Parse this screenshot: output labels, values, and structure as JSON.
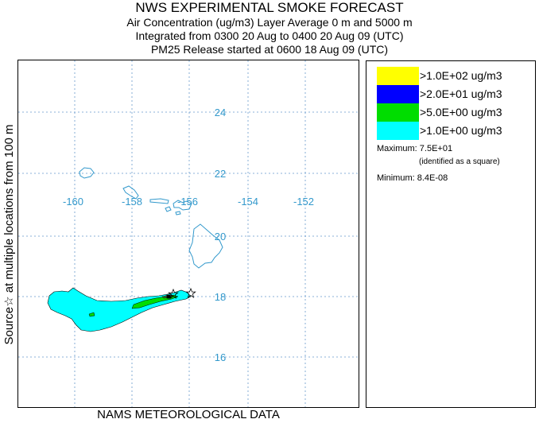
{
  "header": {
    "title": "NWS EXPERIMENTAL SMOKE FORECAST",
    "line2": "Air Concentration (ug/m3) Layer Average    0 m and  5000 m",
    "line3": "Integrated from 0300 20 Aug to 0400 20 Aug 09 (UTC)",
    "line4": "PM25 Release started at 0600 18 Aug 09 (UTC)"
  },
  "side_label": "Source☆ at multiple locations    from   100 m",
  "footer": "NAMS METEOROLOGICAL DATA",
  "map": {
    "lon_labels": [
      "-160",
      "-158",
      "-156",
      "-154",
      "-152"
    ],
    "lat_labels": [
      "24",
      "22",
      "20",
      "18",
      "16"
    ],
    "grid_color": "#6699cc",
    "label_color": "#3399cc",
    "coast_color": "#3399cc"
  },
  "legend": {
    "items": [
      {
        "label": ">1.0E+02 ug/m3",
        "color": "#ffff00"
      },
      {
        "label": ">2.0E+01 ug/m3",
        "color": "#0000ff"
      },
      {
        "label": ">5.0E+00 ug/m3",
        "color": "#00dd00"
      },
      {
        "label": ">1.0E+00 ug/m3",
        "color": "#00ffff"
      }
    ],
    "maximum": "Maximum: 7.5E+01",
    "maximum_note": "(identified as a square)",
    "minimum": "Minimum: 8.4E-08"
  }
}
